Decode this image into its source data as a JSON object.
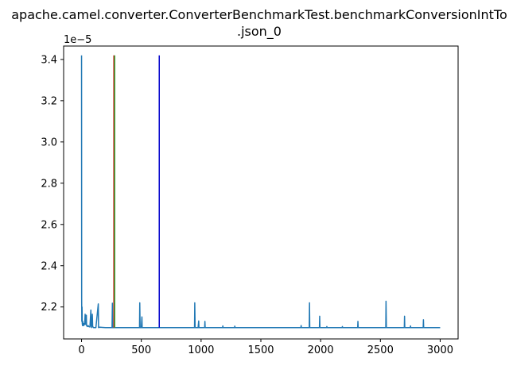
{
  "chart_data": {
    "type": "line",
    "title_line1": "apache.camel.converter.ConverterBenchmarkTest.benchmarkConversionIntTo",
    "title_line2": ".json_0",
    "y_offset_label": "1e−5",
    "xlim": [
      -150,
      3150
    ],
    "ylim": [
      2.045,
      3.465
    ],
    "x_ticks": [
      0,
      500,
      1000,
      1500,
      2000,
      2500,
      3000
    ],
    "y_ticks": [
      2.2,
      2.4,
      2.6,
      2.8,
      3.0,
      3.2,
      3.4
    ],
    "y_tick_labels": [
      "2.2",
      "2.4",
      "2.6",
      "2.8",
      "3.0",
      "3.2",
      "3.4"
    ],
    "baseline": 2.1,
    "series": [
      {
        "color": "#1f77b4",
        "x_max": 3000,
        "points": [
          [
            0,
            3.42
          ],
          [
            1,
            2.24
          ],
          [
            2,
            2.13
          ],
          [
            4,
            2.2
          ],
          [
            6,
            2.12
          ],
          [
            8,
            2.11
          ],
          [
            10,
            2.13
          ],
          [
            12,
            2.11
          ],
          [
            15,
            2.12
          ],
          [
            18,
            2.11
          ],
          [
            22,
            2.12
          ],
          [
            26,
            2.115
          ],
          [
            30,
            2.165
          ],
          [
            32,
            2.12
          ],
          [
            36,
            2.115
          ],
          [
            40,
            2.16
          ],
          [
            42,
            2.11
          ],
          [
            48,
            2.105
          ],
          [
            55,
            2.11
          ],
          [
            60,
            2.105
          ],
          [
            70,
            2.103
          ],
          [
            78,
            2.185
          ],
          [
            80,
            2.11
          ],
          [
            85,
            2.1
          ],
          [
            90,
            2.165
          ],
          [
            93,
            2.105
          ],
          [
            100,
            2.1
          ],
          [
            120,
            2.1
          ],
          [
            140,
            2.215
          ],
          [
            142,
            2.1
          ],
          [
            150,
            2.102
          ],
          [
            200,
            2.1
          ],
          [
            255,
            2.1
          ],
          [
            258,
            2.218
          ],
          [
            260,
            2.1
          ],
          [
            300,
            2.1
          ],
          [
            400,
            2.1
          ],
          [
            485,
            2.1
          ],
          [
            487,
            2.22
          ],
          [
            490,
            2.1
          ],
          [
            500,
            2.1
          ],
          [
            505,
            2.152
          ],
          [
            507,
            2.1
          ],
          [
            600,
            2.1
          ],
          [
            900,
            2.1
          ],
          [
            945,
            2.1
          ],
          [
            947,
            2.22
          ],
          [
            950,
            2.1
          ],
          [
            975,
            2.1
          ],
          [
            980,
            2.132
          ],
          [
            982,
            2.1
          ],
          [
            1000,
            2.1
          ],
          [
            1030,
            2.1
          ],
          [
            1032,
            2.13
          ],
          [
            1034,
            2.1
          ],
          [
            1180,
            2.1
          ],
          [
            1182,
            2.108
          ],
          [
            1184,
            2.1
          ],
          [
            1280,
            2.1
          ],
          [
            1282,
            2.107
          ],
          [
            1284,
            2.1
          ],
          [
            1800,
            2.1
          ],
          [
            1835,
            2.1
          ],
          [
            1837,
            2.11
          ],
          [
            1839,
            2.1
          ],
          [
            1905,
            2.1
          ],
          [
            1907,
            2.22
          ],
          [
            1909,
            2.1
          ],
          [
            1990,
            2.1
          ],
          [
            1992,
            2.155
          ],
          [
            1994,
            2.1
          ],
          [
            2050,
            2.1
          ],
          [
            2052,
            2.105
          ],
          [
            2054,
            2.1
          ],
          [
            2180,
            2.1
          ],
          [
            2182,
            2.105
          ],
          [
            2184,
            2.1
          ],
          [
            2310,
            2.1
          ],
          [
            2312,
            2.13
          ],
          [
            2314,
            2.1
          ],
          [
            2545,
            2.1
          ],
          [
            2547,
            2.228
          ],
          [
            2550,
            2.1
          ],
          [
            2700,
            2.1
          ],
          [
            2702,
            2.155
          ],
          [
            2704,
            2.1
          ],
          [
            2750,
            2.1
          ],
          [
            2752,
            2.108
          ],
          [
            2754,
            2.1
          ],
          [
            2858,
            2.1
          ],
          [
            2860,
            2.138
          ],
          [
            2862,
            2.1
          ],
          [
            3000,
            2.1
          ]
        ]
      }
    ],
    "vertical_lines": [
      {
        "x": 270,
        "y_bottom": 2.1,
        "y_top": 3.42,
        "color": "#d62728"
      },
      {
        "x": 277,
        "y_bottom": 2.1,
        "y_top": 3.42,
        "color": "#2ca02c"
      },
      {
        "x": 650,
        "y_bottom": 2.1,
        "y_top": 3.42,
        "color": "#0000cc"
      }
    ]
  }
}
